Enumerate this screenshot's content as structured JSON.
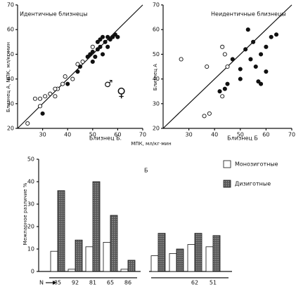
{
  "chart_data": [
    {
      "type": "scatter",
      "title": "Идентичные близнецы",
      "x_label": "Близнец Б.",
      "y_label": "Близнец А, МПК, мл/кг·мин",
      "x_unit_label": "МПК, мл/кг·мин",
      "xlim": [
        20,
        70
      ],
      "ylim": [
        20,
        70
      ],
      "xticks": [
        30,
        40,
        50,
        60,
        70
      ],
      "yticks": [
        20,
        30,
        40,
        50,
        60,
        70
      ],
      "identity_line": true,
      "annotations": [
        "♂",
        "♀"
      ],
      "series": [
        {
          "marker": "filled",
          "color": "#111111",
          "x": [
            30,
            40,
            44,
            45,
            48,
            49,
            50,
            51,
            52,
            52,
            53,
            54,
            55,
            56,
            57,
            58,
            59,
            60,
            56,
            53,
            54,
            50
          ],
          "values": [
            26,
            38,
            43,
            45,
            49,
            50,
            51,
            49,
            52,
            55,
            56,
            57,
            55,
            53,
            56,
            57,
            58,
            57,
            57,
            53,
            50,
            47
          ]
        },
        {
          "marker": "open",
          "color": "#111111",
          "x": [
            24,
            27,
            29,
            31,
            33,
            35,
            36,
            38,
            39,
            42,
            44,
            46,
            50,
            29,
            35
          ],
          "values": [
            22,
            32,
            32,
            33,
            34,
            33,
            36,
            38,
            41,
            40,
            46,
            47,
            53,
            29,
            36
          ]
        }
      ]
    },
    {
      "type": "scatter",
      "title": "Неидентичные близнецы",
      "x_label": "Близнец Б",
      "y_label": "Близнец А",
      "xlim": [
        20,
        70
      ],
      "ylim": [
        20,
        70
      ],
      "xticks": [
        30,
        40,
        50,
        60,
        70
      ],
      "yticks": [
        20,
        30,
        40,
        50,
        60,
        70
      ],
      "identity_line": true,
      "series": [
        {
          "marker": "filled",
          "color": "#111111",
          "x": [
            42,
            44,
            45,
            47,
            50,
            50,
            52,
            53,
            54,
            55,
            56,
            57,
            58,
            60,
            60,
            62,
            64,
            58
          ],
          "values": [
            35,
            36,
            38,
            48,
            40,
            44,
            52,
            60,
            48,
            55,
            45,
            39,
            50,
            43,
            53,
            57,
            58,
            38
          ]
        },
        {
          "marker": "open",
          "color": "#111111",
          "x": [
            27,
            37,
            38,
            36,
            43,
            44,
            43,
            45
          ],
          "values": [
            48,
            45,
            26,
            25,
            33,
            50,
            53,
            45
          ]
        }
      ]
    },
    {
      "type": "bar",
      "panel_label": "Б",
      "y_label": "Межпарное различие %",
      "n_label": "N",
      "categories": [
        "85",
        "92",
        "81",
        "65",
        "86",
        null,
        null,
        "62",
        "51"
      ],
      "ylim": [
        0,
        50
      ],
      "yticks": [
        0,
        10,
        20,
        30,
        40,
        50
      ],
      "series": [
        {
          "name": "Монозиготные",
          "color": "#ffffff",
          "values": [
            9,
            1,
            11,
            13,
            1,
            7,
            8,
            12,
            11
          ]
        },
        {
          "name": "Дизиготные",
          "color": "#555555",
          "values": [
            36,
            14,
            40,
            25,
            5,
            17,
            10,
            17,
            16
          ]
        }
      ]
    }
  ]
}
